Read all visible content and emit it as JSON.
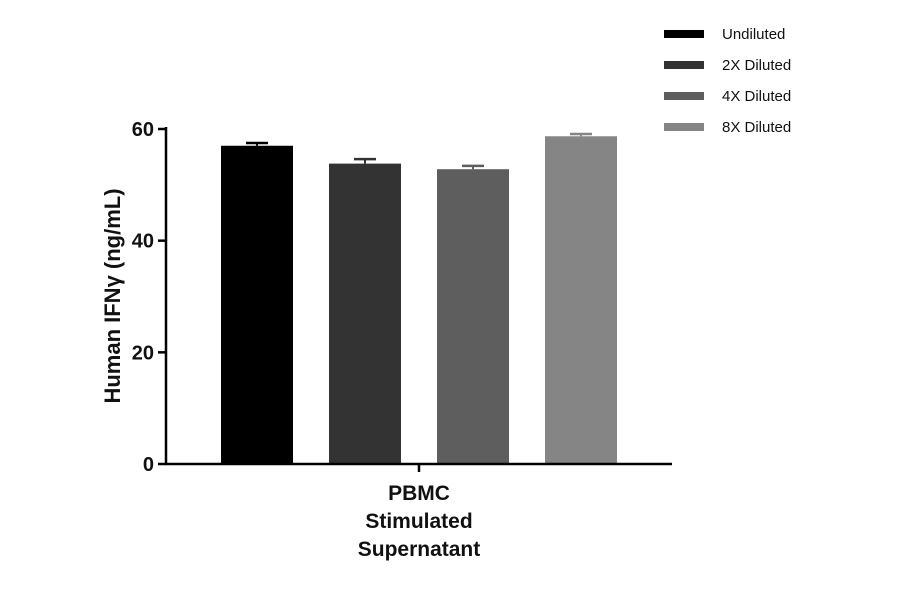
{
  "chart_data": {
    "type": "bar",
    "categories": [
      "PBMC Stimulated Supernatant"
    ],
    "category_label_lines": [
      "PBMC",
      "Stimulated",
      "Supernatant"
    ],
    "series": [
      {
        "name": "Undiluted",
        "values": [
          57.0
        ],
        "error": [
          0.5
        ],
        "color": "#000000"
      },
      {
        "name": "2X Diluted",
        "values": [
          53.8
        ],
        "error": [
          0.8
        ],
        "color": "#333333"
      },
      {
        "name": "4X Diluted",
        "values": [
          52.8
        ],
        "error": [
          0.6
        ],
        "color": "#5e5e5e"
      },
      {
        "name": "8X Diluted",
        "values": [
          58.7
        ],
        "error": [
          0.4
        ],
        "color": "#858585"
      }
    ],
    "ylabel": "Human IFNγ (ng/mL)",
    "xlabel": "",
    "ylim": [
      0,
      60
    ],
    "yticks": [
      0,
      20,
      40,
      60
    ],
    "grid": false,
    "legend_position": "top-right"
  }
}
